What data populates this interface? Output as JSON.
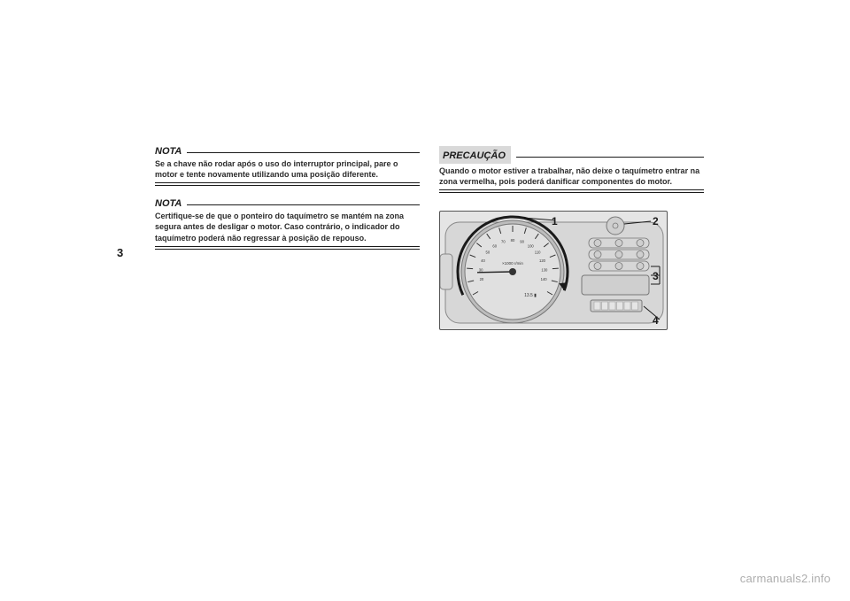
{
  "sidebar": {
    "chapter": "3"
  },
  "left_col": {
    "nota1": {
      "label": "NOTA",
      "text": "Se a chave não rodar após o uso do interruptor principal, pare o motor e tente novamente utilizando uma posição diferente."
    },
    "nota2": {
      "label": "NOTA",
      "text": "Certifique-se de que o ponteiro do taquímetro se mantém na zona segura antes de desligar o motor. Caso contrário, o indicador do taquímetro poderá não regressar à posição de repouso."
    }
  },
  "right_col": {
    "precaucao": {
      "label": "PRECAUÇÃO",
      "text": "Quando o motor estiver a trabalhar, não deixe o taquímetro entrar na zona vermelha, pois poderá danificar componentes do motor."
    }
  },
  "figure": {
    "callouts": {
      "c1": "1",
      "c2": "2",
      "c3": "3",
      "c4": "4"
    },
    "dial": {
      "ticks_major": [
        0,
        1,
        2,
        3,
        4,
        5,
        6,
        7,
        8,
        9,
        10,
        11,
        12,
        13,
        14
      ],
      "labels": [
        "20",
        "30",
        "40",
        "50",
        "60",
        "70",
        "80",
        "90",
        "100",
        "110",
        "120",
        "130",
        "140"
      ],
      "label_fontsize": 4.2,
      "label_color": "#333333",
      "needle_rel_value": 0.12,
      "center_text_top": "×1000 r/min",
      "center_text_bottom": "13.5 ▮"
    },
    "arc": {
      "color": "#1a1a1a",
      "width": 3,
      "start_deg": 205,
      "end_deg": -20,
      "arrow_at_end": true
    },
    "leaders": {
      "color": "#1a1a1a",
      "width": 1
    },
    "right_panel": {
      "symbol_rows": 3,
      "symbols_per_row": 3,
      "symbol_shape": "circle",
      "symbol_fill": "#cfcfcf",
      "symbol_border": "#777777"
    },
    "bg_color": "#e5e5e5",
    "body_color": "#d7d7d7",
    "dial_face": "#e0e0e0",
    "border_color": "#555555"
  },
  "watermark": "carmanuals2.info"
}
